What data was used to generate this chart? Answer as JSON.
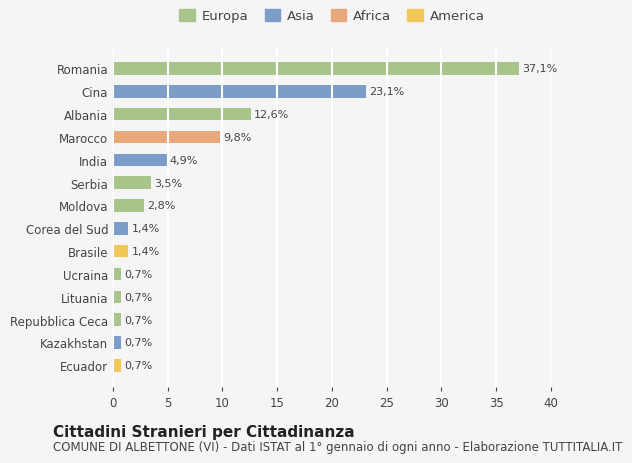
{
  "countries": [
    "Romania",
    "Cina",
    "Albania",
    "Marocco",
    "India",
    "Serbia",
    "Moldova",
    "Corea del Sud",
    "Brasile",
    "Ucraina",
    "Lituania",
    "Repubblica Ceca",
    "Kazakhstan",
    "Ecuador"
  ],
  "values": [
    37.1,
    23.1,
    12.6,
    9.8,
    4.9,
    3.5,
    2.8,
    1.4,
    1.4,
    0.7,
    0.7,
    0.7,
    0.7,
    0.7
  ],
  "labels": [
    "37,1%",
    "23,1%",
    "12,6%",
    "9,8%",
    "4,9%",
    "3,5%",
    "2,8%",
    "1,4%",
    "1,4%",
    "0,7%",
    "0,7%",
    "0,7%",
    "0,7%",
    "0,7%"
  ],
  "continents": [
    "Europa",
    "Asia",
    "Europa",
    "Africa",
    "Asia",
    "Europa",
    "Europa",
    "Asia",
    "America",
    "Europa",
    "Europa",
    "Europa",
    "Asia",
    "America"
  ],
  "colors": {
    "Europa": "#a8c48a",
    "Asia": "#7b9dc7",
    "Africa": "#e8a87c",
    "America": "#f0c85a"
  },
  "legend_order": [
    "Europa",
    "Asia",
    "Africa",
    "America"
  ],
  "xlim": [
    0,
    40
  ],
  "xticks": [
    0,
    5,
    10,
    15,
    20,
    25,
    30,
    35,
    40
  ],
  "title": "Cittadini Stranieri per Cittadinanza",
  "subtitle": "COMUNE DI ALBETTONE (VI) - Dati ISTAT al 1° gennaio di ogni anno - Elaborazione TUTTITALIA.IT",
  "bg_color": "#f5f5f5",
  "grid_color": "#ffffff",
  "bar_height": 0.55,
  "title_fontsize": 11,
  "subtitle_fontsize": 8.5,
  "label_fontsize": 8,
  "tick_fontsize": 8.5
}
